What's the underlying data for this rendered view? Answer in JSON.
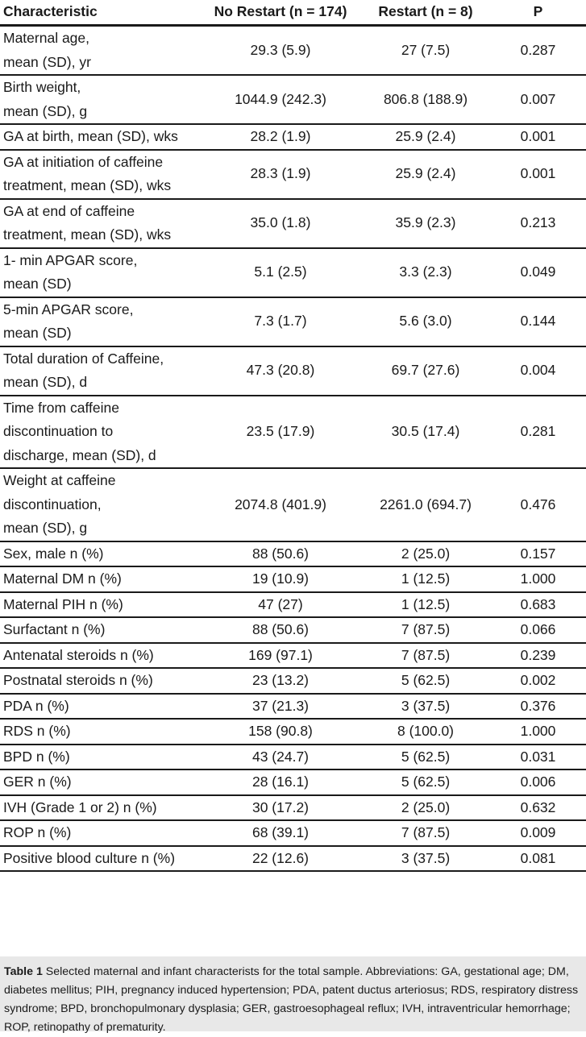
{
  "table": {
    "headers": [
      "Characteristic",
      "No Restart (n = 174)",
      "Restart (n = 8)",
      "P"
    ],
    "rows": [
      {
        "label": "Maternal age,\nmean (SD), yr",
        "no_restart": "29.3 (5.9)",
        "restart": "27 (7.5)",
        "p": "0.287"
      },
      {
        "label": "Birth weight,\nmean (SD), g",
        "no_restart": "1044.9 (242.3)",
        "restart": "806.8 (188.9)",
        "p": "0.007"
      },
      {
        "label": "GA at birth, mean (SD), wks\n ",
        "no_restart": "28.2 (1.9)",
        "restart": "25.9 (2.4)",
        "p": "0.001"
      },
      {
        "label": "GA at initiation of caffeine\ntreatment, mean (SD), wks",
        "no_restart": "28.3 (1.9)",
        "restart": "25.9 (2.4)",
        "p": "0.001"
      },
      {
        "label": "GA at end of caffeine\ntreatment, mean (SD), wks",
        "no_restart": "35.0 (1.8)",
        "restart": "35.9 (2.3)",
        "p": "0.213"
      },
      {
        "label": "1- min APGAR score,\nmean (SD)",
        "no_restart": "5.1 (2.5)",
        "restart": "3.3 (2.3)",
        "p": "0.049"
      },
      {
        "label": "5-min APGAR score,\nmean (SD)",
        "no_restart": "7.3 (1.7)",
        "restart": "5.6 (3.0)",
        "p": "0.144"
      },
      {
        "label": "Total duration of Caffeine,\nmean (SD), d",
        "no_restart": "47.3 (20.8)",
        "restart": "69.7 (27.6)",
        "p": "0.004"
      },
      {
        "label": "Time from caffeine\ndiscontinuation to\ndischarge, mean (SD), d",
        "no_restart": "23.5 (17.9)",
        "restart": "30.5 (17.4)",
        "p": "0.281"
      },
      {
        "label": "Weight at caffeine\ndiscontinuation,\nmean (SD), g",
        "no_restart": "2074.8 (401.9)",
        "restart": "2261.0 (694.7)",
        "p": "0.476"
      },
      {
        "label": "Sex, male n (%)",
        "no_restart": "88 (50.6)",
        "restart": "2 (25.0)",
        "p": "0.157"
      },
      {
        "label": "Maternal DM n (%)",
        "no_restart": "19 (10.9)",
        "restart": "1 (12.5)",
        "p": "1.000"
      },
      {
        "label": "Maternal PIH n (%)",
        "no_restart": "47 (27)",
        "restart": "1 (12.5)",
        "p": "0.683"
      },
      {
        "label": "Surfactant n (%)",
        "no_restart": "88 (50.6)",
        "restart": "7 (87.5)",
        "p": "0.066"
      },
      {
        "label": "Antenatal steroids n (%)",
        "no_restart": "169 (97.1)",
        "restart": "7 (87.5)",
        "p": "0.239"
      },
      {
        "label": "Postnatal steroids n (%)",
        "no_restart": "23 (13.2)",
        "restart": "5 (62.5)",
        "p": "0.002"
      },
      {
        "label": "PDA n (%)",
        "no_restart": "37 (21.3)",
        "restart": "3 (37.5)",
        "p": "0.376"
      },
      {
        "label": "RDS n (%)",
        "no_restart": "158 (90.8)",
        "restart": "8 (100.0)",
        "p": "1.000"
      },
      {
        "label": "BPD n (%)",
        "no_restart": "43 (24.7)",
        "restart": "5 (62.5)",
        "p": "0.031"
      },
      {
        "label": "GER n (%)",
        "no_restart": "28 (16.1)",
        "restart": "5 (62.5)",
        "p": "0.006"
      },
      {
        "label": "IVH (Grade 1 or 2) n (%)",
        "no_restart": "30 (17.2)",
        "restart": "2 (25.0)",
        "p": "0.632"
      },
      {
        "label": "ROP n (%)",
        "no_restart": "68 (39.1)",
        "restart": "7 (87.5)",
        "p": "0.009"
      },
      {
        "label": "Positive blood culture n (%)",
        "no_restart": "22 (12.6)",
        "restart": "3 (37.5)",
        "p": "0.081"
      }
    ]
  },
  "caption": {
    "label": "Table 1",
    "text": " Selected maternal and infant characterists for the total sample. Abbreviations: GA, gestational age; DM, diabetes mellitus; PIH, pregnancy induced hypertension; PDA, patent ductus arteriosus; RDS, respiratory distress syndrome; BPD, bronchopulmonary dysplasia; GER, gastroesophageal reflux; IVH, intraventricular hemorrhage; ROP, retinopathy of prematurity."
  }
}
